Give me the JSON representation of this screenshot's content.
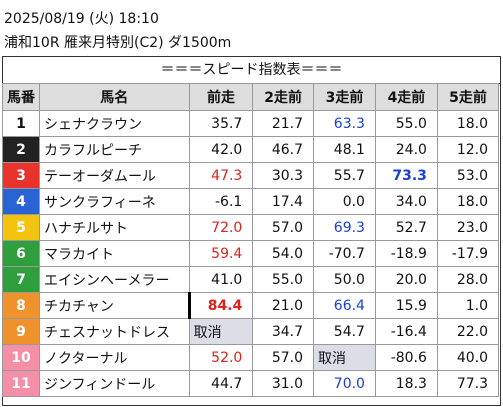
{
  "header": {
    "datetime": "2025/08/19 (火) 18:10",
    "race": "浦和10R 雁来月特別(C2) ダ1500m"
  },
  "table": {
    "title": "＝＝＝スピード指数表＝＝＝",
    "columns": [
      "馬番",
      "馬名",
      "前走",
      "2走前",
      "3走前",
      "4走前",
      "5走前"
    ],
    "rows": [
      [
        "1",
        "シェナクラウン",
        "35.7",
        "21.7",
        "63.3",
        "55.0",
        "18.0"
      ],
      [
        "2",
        "カラフルピーチ",
        "42.0",
        "46.7",
        "48.1",
        "24.0",
        "12.0"
      ],
      [
        "3",
        "テーオーダムール",
        "47.3",
        "30.3",
        "55.7",
        "73.3",
        "53.0"
      ],
      [
        "4",
        "サンクラフィーネ",
        "-6.1",
        "17.4",
        "0.0",
        "34.0",
        "18.0"
      ],
      [
        "5",
        "ハナチルサト",
        "72.0",
        "57.0",
        "69.3",
        "52.7",
        "23.0"
      ],
      [
        "6",
        "マラカイト",
        "59.4",
        "54.0",
        "-70.7",
        "-18.9",
        "-17.9"
      ],
      [
        "7",
        "エイシンヘーメラー",
        "41.0",
        "55.0",
        "50.0",
        "20.0",
        "28.0"
      ],
      [
        "8",
        "チカチャン",
        "84.4",
        "21.0",
        "66.4",
        "15.9",
        "1.0"
      ],
      [
        "9",
        "チェスナットドレス",
        "取消",
        "34.7",
        "54.7",
        "-16.4",
        "22.0"
      ],
      [
        "10",
        "ノクターナル",
        "52.0",
        "57.0",
        "取消",
        "-80.6",
        "40.0"
      ],
      [
        "11",
        "ジンフィンドール",
        "44.7",
        "31.0",
        "70.0",
        "18.3",
        "77.3"
      ]
    ]
  }
}
